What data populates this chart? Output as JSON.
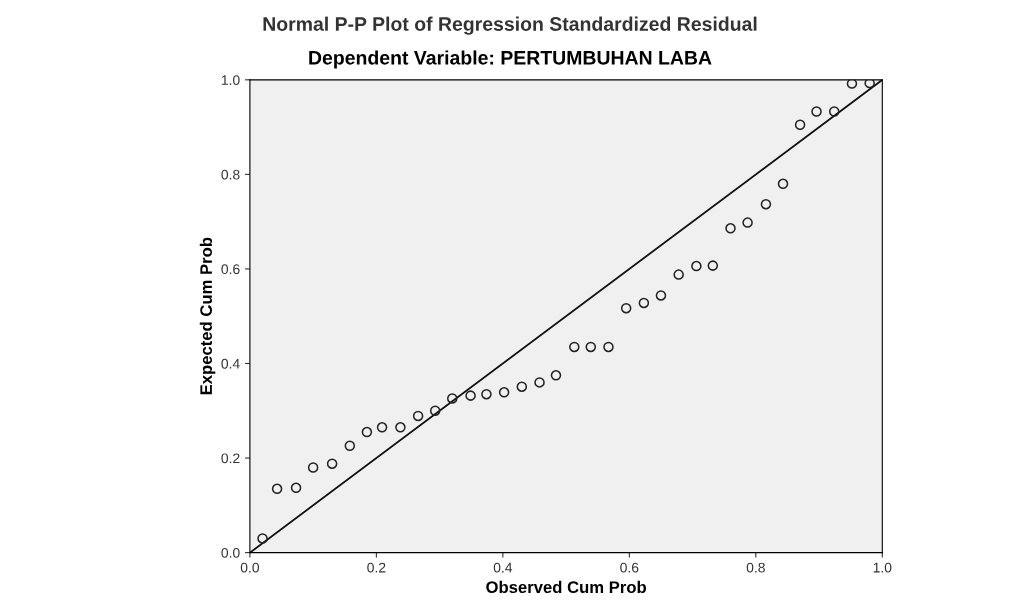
{
  "chart_data": {
    "type": "scatter",
    "title": "Normal P-P Plot of Regression Standardized Residual",
    "subtitle": "Dependent Variable: PERTUMBUHAN LABA",
    "xlabel": "Observed Cum Prob",
    "ylabel": "Expected Cum Prob",
    "xlim": [
      0,
      1
    ],
    "ylim": [
      0,
      1
    ],
    "xticks": [
      {
        "value": 0,
        "label": "0.0"
      },
      {
        "value": 0.2,
        "label": "0.2"
      },
      {
        "value": 0.4,
        "label": "0.4"
      },
      {
        "value": 0.6,
        "label": "0.6"
      },
      {
        "value": 0.8,
        "label": "0.8"
      },
      {
        "value": 1,
        "label": "1.0"
      }
    ],
    "yticks": [
      {
        "value": 0,
        "label": "0.0"
      },
      {
        "value": 0.2,
        "label": "0.2"
      },
      {
        "value": 0.4,
        "label": "0.4"
      },
      {
        "value": 0.6,
        "label": "0.6"
      },
      {
        "value": 0.8,
        "label": "0.8"
      },
      {
        "value": 1,
        "label": "1.0"
      }
    ],
    "grid": false,
    "series": [
      {
        "marker": "circle",
        "color": "#222222",
        "x": [
          0.02,
          0.043,
          0.073,
          0.1,
          0.13,
          0.158,
          0.185,
          0.209,
          0.238,
          0.266,
          0.293,
          0.32,
          0.349,
          0.374,
          0.402,
          0.43,
          0.458,
          0.484,
          0.513,
          0.539,
          0.567,
          0.595,
          0.623,
          0.65,
          0.678,
          0.706,
          0.732,
          0.76,
          0.787,
          0.816,
          0.843,
          0.87,
          0.896,
          0.924,
          0.952,
          0.98
        ],
        "values": [
          0.03,
          0.135,
          0.137,
          0.18,
          0.188,
          0.226,
          0.255,
          0.265,
          0.265,
          0.289,
          0.3,
          0.326,
          0.332,
          0.335,
          0.339,
          0.351,
          0.36,
          0.375,
          0.435,
          0.435,
          0.435,
          0.517,
          0.528,
          0.544,
          0.588,
          0.606,
          0.607,
          0.686,
          0.698,
          0.737,
          0.78,
          0.905,
          0.933,
          0.933,
          0.992,
          0.993
        ]
      },
      {
        "type": "line",
        "color": "#111111",
        "x": [
          0,
          1
        ],
        "values": [
          0,
          1
        ]
      }
    ]
  }
}
